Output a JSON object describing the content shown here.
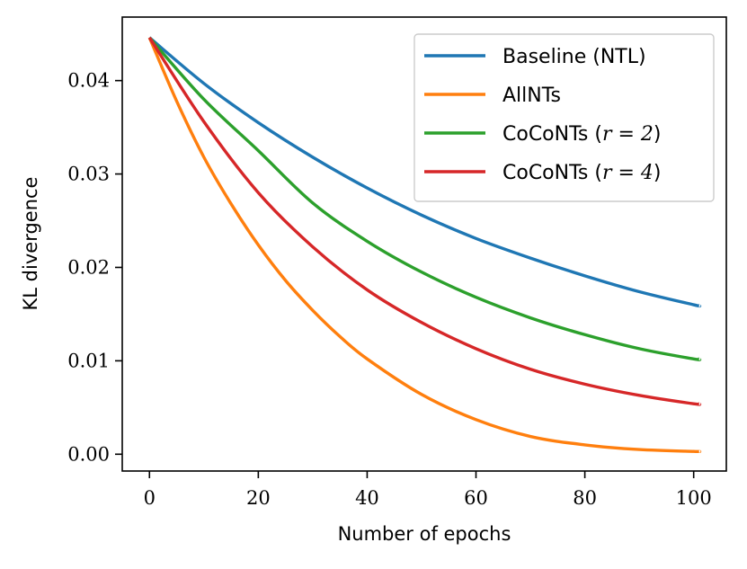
{
  "chart_data": {
    "type": "line",
    "title": "",
    "xlabel": "Number of epochs",
    "ylabel": "KL divergence",
    "xlim": [
      -5,
      106
    ],
    "ylim": [
      -0.0018,
      0.0468
    ],
    "xticks": [
      0,
      20,
      40,
      60,
      80,
      100
    ],
    "xtick_labels": [
      "0",
      "20",
      "40",
      "60",
      "80",
      "100"
    ],
    "yticks": [
      0.0,
      0.01,
      0.02,
      0.03,
      0.04
    ],
    "ytick_labels": [
      "0.00",
      "0.01",
      "0.02",
      "0.03",
      "0.04"
    ],
    "grid": false,
    "legend_position": "top-right",
    "series": [
      {
        "name": "Baseline (NTL)",
        "label_text": "Baseline (NTL)",
        "label_math": "",
        "label_close": "",
        "color": "#1f77b4",
        "x": [
          0,
          10,
          20,
          30,
          40,
          50,
          60,
          70,
          80,
          90,
          100,
          101
        ],
        "values": [
          0.0446,
          0.0397,
          0.0355,
          0.0318,
          0.0285,
          0.0256,
          0.0231,
          0.021,
          0.0191,
          0.0174,
          0.016,
          0.0159
        ]
      },
      {
        "name": "AllNTs",
        "label_text": "AllNTs",
        "label_math": "",
        "label_close": "",
        "color": "#ff7f0e",
        "x": [
          0,
          5,
          10,
          15,
          20,
          25,
          30,
          35,
          40,
          50,
          60,
          70,
          80,
          90,
          100,
          101
        ],
        "values": [
          0.0446,
          0.0378,
          0.0318,
          0.0268,
          0.0224,
          0.0186,
          0.0154,
          0.0126,
          0.0102,
          0.0064,
          0.0037,
          0.0019,
          0.001,
          0.0005,
          0.0003,
          0.0003
        ]
      },
      {
        "name": "CoCoNTs (r = 2)",
        "label_text": "CoCoNTs (",
        "label_math": "r = 2",
        "label_close": ")",
        "color": "#2ca02c",
        "x": [
          0,
          10,
          20,
          30,
          40,
          50,
          60,
          70,
          80,
          90,
          100,
          101
        ],
        "values": [
          0.0446,
          0.038,
          0.0325,
          0.0269,
          0.0228,
          0.0195,
          0.0168,
          0.0146,
          0.0128,
          0.0113,
          0.0102,
          0.0102
        ]
      },
      {
        "name": "CoCoNTs (r = 4)",
        "label_text": "CoCoNTs (",
        "label_math": "r = 4",
        "label_close": ")",
        "color": "#d62728",
        "x": [
          0,
          10,
          20,
          30,
          40,
          50,
          60,
          70,
          80,
          90,
          100,
          101
        ],
        "values": [
          0.0446,
          0.0356,
          0.028,
          0.0222,
          0.0176,
          0.0141,
          0.0113,
          0.0091,
          0.0075,
          0.0063,
          0.0054,
          0.0054
        ]
      }
    ]
  }
}
